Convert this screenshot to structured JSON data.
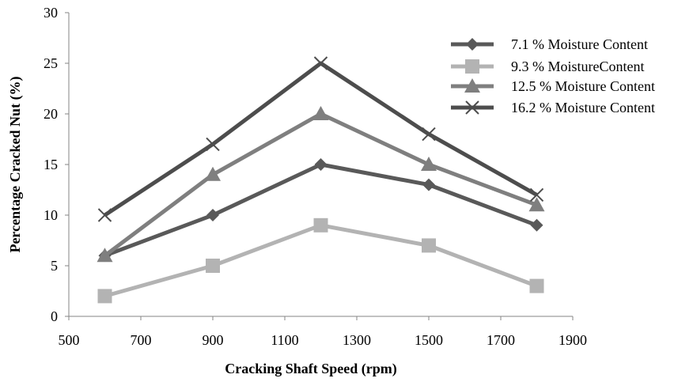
{
  "chart_data": {
    "type": "line",
    "title": "",
    "xlabel": "Cracking Shaft Speed (rpm)",
    "ylabel": "Percentage Cracked Nut (%)",
    "xlim": [
      500,
      1900
    ],
    "ylim": [
      0,
      30
    ],
    "xticks": [
      500,
      700,
      900,
      1100,
      1300,
      1500,
      1700,
      1900
    ],
    "yticks": [
      0,
      5,
      10,
      15,
      20,
      25,
      30
    ],
    "grid": false,
    "legend_position": "top-right",
    "x": [
      600,
      900,
      1200,
      1500,
      1800
    ],
    "series": [
      {
        "name": "7.1 % Moisture Content",
        "values": [
          6,
          10,
          15,
          13,
          9
        ],
        "color": "#595959",
        "marker": "diamond"
      },
      {
        "name": "9.3 % MoistureContent",
        "values": [
          2,
          5,
          9,
          7,
          3
        ],
        "color": "#b3b3b3",
        "marker": "square"
      },
      {
        "name": "12.5 % Moisture Content",
        "values": [
          6,
          14,
          20,
          15,
          11
        ],
        "color": "#7f7f7f",
        "marker": "triangle"
      },
      {
        "name": "16.2 % Moisture Content",
        "values": [
          10,
          17,
          25,
          18,
          12
        ],
        "color": "#4d4d4d",
        "marker": "x"
      }
    ]
  }
}
